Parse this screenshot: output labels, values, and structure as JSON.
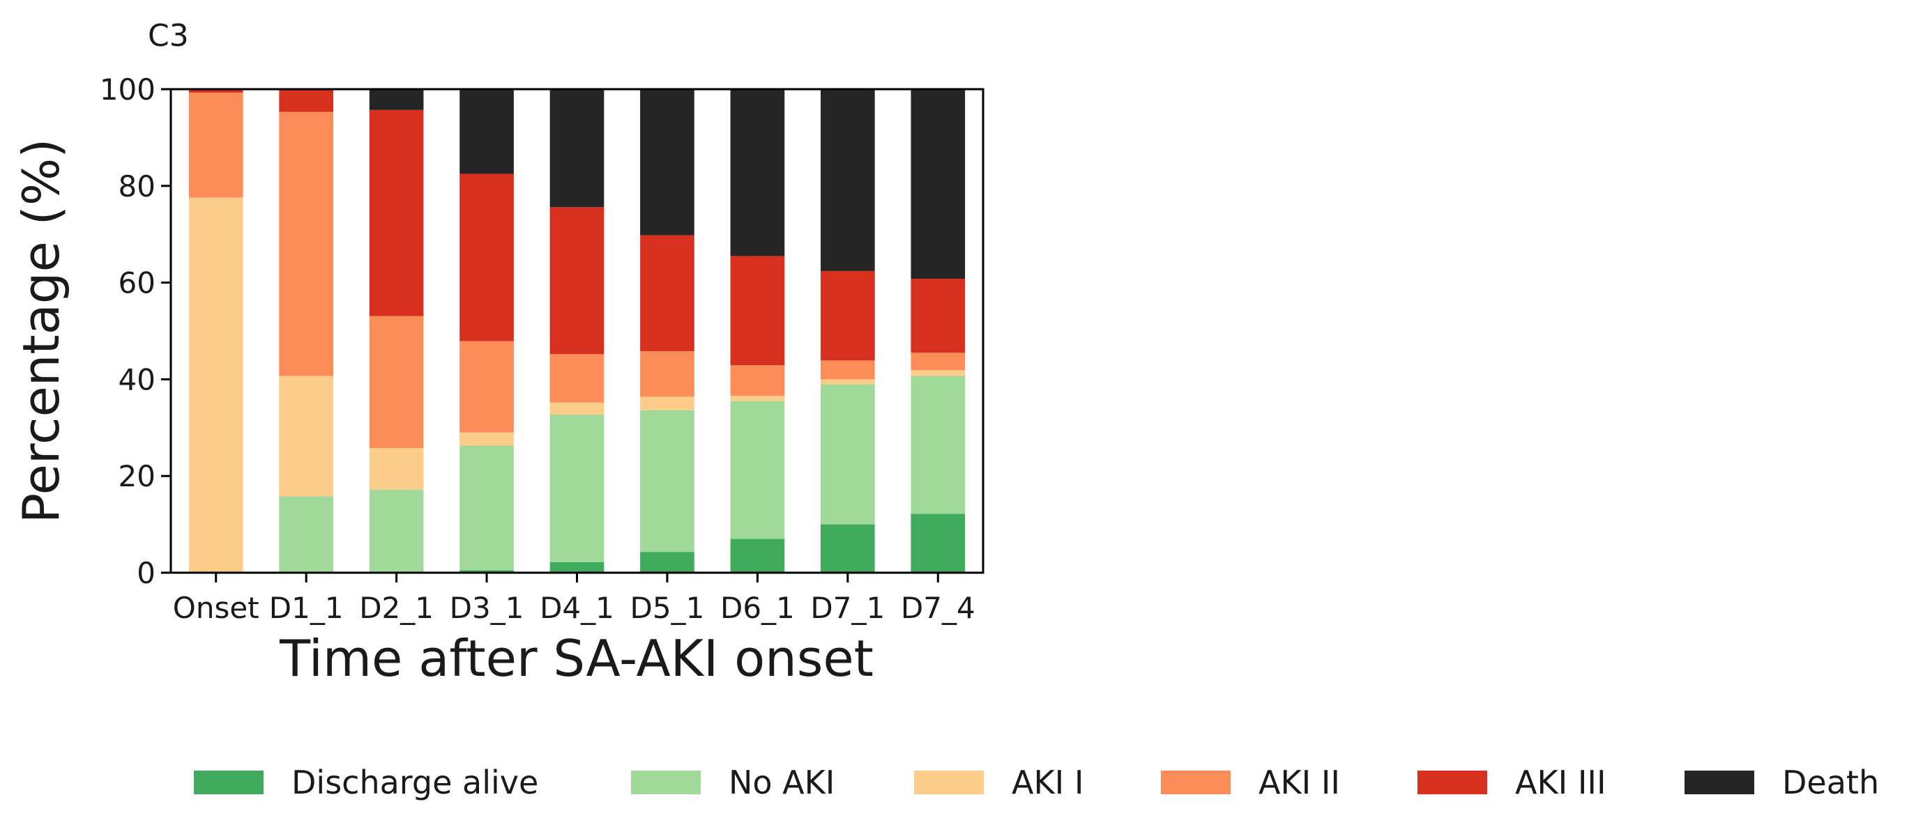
{
  "chart_data": {
    "type": "bar",
    "stacked": true,
    "panel_label": "C3",
    "xlabel": "Time after SA-AKI onset",
    "ylabel": "Percentage (%)",
    "ylim": [
      0,
      100
    ],
    "yticks": [
      0,
      20,
      40,
      60,
      80,
      100
    ],
    "categories": [
      "Onset",
      "D1_1",
      "D2_1",
      "D3_1",
      "D4_1",
      "D5_1",
      "D6_1",
      "D7_1",
      "D7_4"
    ],
    "grid": false,
    "legend_position": "bottom",
    "series": [
      {
        "name": "Discharge alive",
        "color": "#41ab5d",
        "values": [
          0,
          0,
          0,
          0.5,
          2.2,
          4.3,
          7.0,
          10.0,
          12.2
        ]
      },
      {
        "name": "No AKI",
        "color": "#a1d99b",
        "values": [
          0,
          15.8,
          17.2,
          25.8,
          30.5,
          29.3,
          28.5,
          29.0,
          28.5
        ]
      },
      {
        "name": "AKI I",
        "color": "#fdcc8a",
        "values": [
          77.6,
          24.9,
          8.6,
          2.7,
          2.5,
          2.8,
          1.1,
          1.0,
          1.2
        ]
      },
      {
        "name": "AKI II",
        "color": "#fc8d59",
        "values": [
          21.7,
          54.6,
          27.3,
          18.9,
          10.0,
          9.4,
          6.3,
          3.9,
          3.6
        ]
      },
      {
        "name": "AKI III",
        "color": "#d7301f",
        "values": [
          0.7,
          4.7,
          42.6,
          34.6,
          30.4,
          24.0,
          22.6,
          18.5,
          15.3
        ]
      },
      {
        "name": "Death",
        "color": "#252525",
        "values": [
          0,
          0,
          4.3,
          17.5,
          24.4,
          30.2,
          34.5,
          37.6,
          39.2
        ]
      }
    ]
  }
}
